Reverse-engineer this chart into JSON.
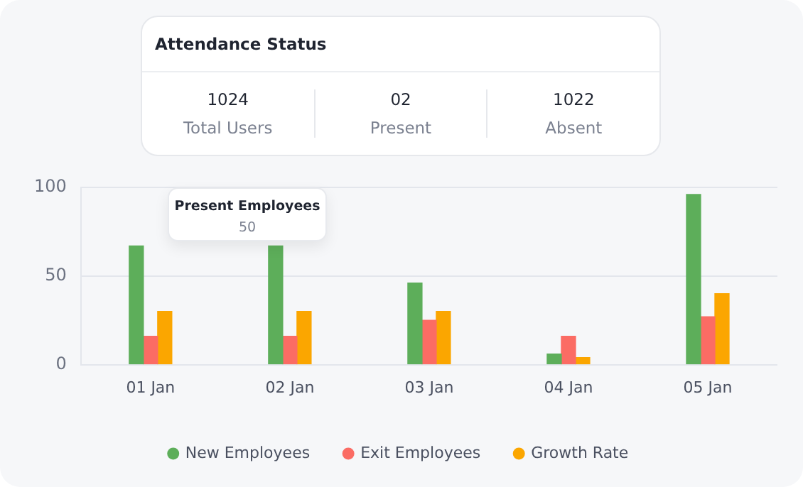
{
  "chart_data": [
    {
      "type": "other",
      "title": "Attendance Status",
      "annotations": [
        "1024",
        "Total Users",
        "02",
        "Present",
        "1022",
        "Absent"
      ]
    },
    {
      "type": "bar",
      "categories": [
        "01 Jan",
        "02 Jan",
        "03 Jan",
        "04 Jan",
        "05 Jan"
      ],
      "series": [
        {
          "name": "New Employees",
          "color": "#5dae5a",
          "values": [
            67,
            67,
            46,
            6,
            96
          ]
        },
        {
          "name": "Exit Employees",
          "color": "#fb6c64",
          "values": [
            16,
            16,
            25,
            16,
            27
          ]
        },
        {
          "name": "Growth Rate",
          "color": "#fba600",
          "values": [
            30,
            30,
            30,
            4,
            40
          ]
        }
      ],
      "ylim": [
        0,
        100
      ],
      "yticks": [
        0,
        50,
        100
      ],
      "grid": "y",
      "legend": "bottom",
      "annotations": [
        "Present Employees",
        "50"
      ]
    }
  ]
}
